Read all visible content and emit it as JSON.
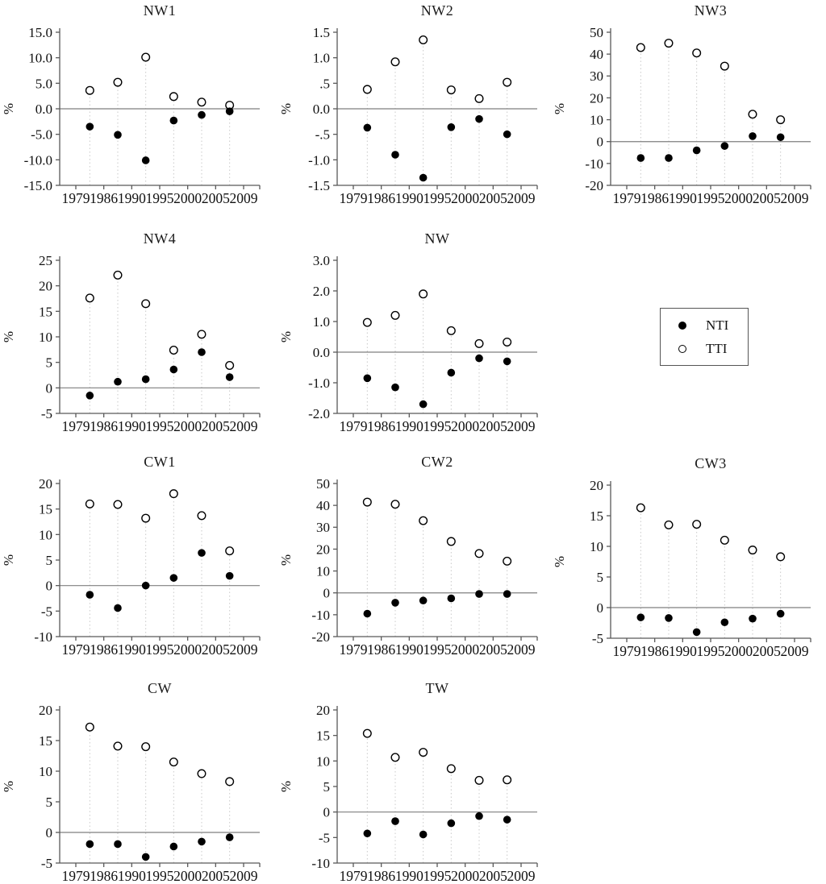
{
  "legend": {
    "items": [
      {
        "label": "NTI",
        "marker": "filled"
      },
      {
        "label": "TTI",
        "marker": "open"
      }
    ]
  },
  "layout": {
    "grid": "3 columns x 4 rows of small-multiple scatter plots",
    "x_points": "6 data points placed at midpoints between the 7 year ticks",
    "colors": {
      "marker": "#000000",
      "zero_line": "#7f7f7f",
      "axis": "#595959",
      "stem": "#c9c9c9"
    }
  },
  "chart_data": [
    {
      "type": "scatter",
      "title": "NW1",
      "ylabel": "%",
      "ylim": [
        -15,
        15
      ],
      "yticks": [
        {
          "v": 15,
          "label": "15.0"
        },
        {
          "v": 10,
          "label": "10.0"
        },
        {
          "v": 5,
          "label": "5.0"
        },
        {
          "v": 0,
          "label": "0.0"
        },
        {
          "v": -5,
          "label": "-5.0"
        },
        {
          "v": -10,
          "label": "-10.0"
        },
        {
          "v": -15,
          "label": "-15.0"
        }
      ],
      "xtick_labels": [
        "1979",
        "1986",
        "1990",
        "1995",
        "2000",
        "2005",
        "2009"
      ],
      "series": [
        {
          "name": "NTI",
          "marker": "filled",
          "values": [
            -3.5,
            -5.1,
            -10.1,
            -2.3,
            -1.2,
            -0.5
          ]
        },
        {
          "name": "TTI",
          "marker": "open",
          "values": [
            3.6,
            5.2,
            10.1,
            2.4,
            1.3,
            0.7
          ]
        }
      ]
    },
    {
      "type": "scatter",
      "title": "NW2",
      "ylabel": "%",
      "ylim": [
        -1.5,
        1.5
      ],
      "yticks": [
        {
          "v": 1.5,
          "label": "1.5"
        },
        {
          "v": 1.0,
          "label": "1.0"
        },
        {
          "v": 0.5,
          "label": ".5"
        },
        {
          "v": 0,
          "label": "0.0"
        },
        {
          "v": -0.5,
          "label": "-.5"
        },
        {
          "v": -1.0,
          "label": "-1.0"
        },
        {
          "v": -1.5,
          "label": "-1.5"
        }
      ],
      "xtick_labels": [
        "1979",
        "1986",
        "1990",
        "1995",
        "2000",
        "2005",
        "2009"
      ],
      "series": [
        {
          "name": "NTI",
          "marker": "filled",
          "values": [
            -0.37,
            -0.9,
            -1.35,
            -0.36,
            -0.2,
            -0.5
          ]
        },
        {
          "name": "TTI",
          "marker": "open",
          "values": [
            0.38,
            0.92,
            1.35,
            0.37,
            0.2,
            0.52
          ]
        }
      ]
    },
    {
      "type": "scatter",
      "title": "NW3",
      "ylabel": "%",
      "ylim": [
        -20,
        50
      ],
      "yticks": [
        {
          "v": 50,
          "label": "50"
        },
        {
          "v": 40,
          "label": "40"
        },
        {
          "v": 30,
          "label": "30"
        },
        {
          "v": 20,
          "label": "20"
        },
        {
          "v": 10,
          "label": "10"
        },
        {
          "v": 0,
          "label": "0"
        },
        {
          "v": -10,
          "label": "-10"
        },
        {
          "v": -20,
          "label": "-20"
        }
      ],
      "xtick_labels": [
        "1979",
        "1986",
        "1990",
        "1995",
        "2000",
        "2005",
        "2009"
      ],
      "series": [
        {
          "name": "NTI",
          "marker": "filled",
          "values": [
            -7.5,
            -7.5,
            -4,
            -2,
            2.5,
            2
          ]
        },
        {
          "name": "TTI",
          "marker": "open",
          "values": [
            43,
            45,
            40.5,
            34.5,
            12.5,
            10
          ]
        }
      ]
    },
    {
      "type": "scatter",
      "title": "NW4",
      "ylabel": "%",
      "ylim": [
        -5,
        25
      ],
      "yticks": [
        {
          "v": 25,
          "label": "25"
        },
        {
          "v": 20,
          "label": "20"
        },
        {
          "v": 15,
          "label": "15"
        },
        {
          "v": 10,
          "label": "10"
        },
        {
          "v": 5,
          "label": "5"
        },
        {
          "v": 0,
          "label": "0"
        },
        {
          "v": -5,
          "label": "-5"
        }
      ],
      "xtick_labels": [
        "1979",
        "1986",
        "1990",
        "1995",
        "2000",
        "2005",
        "2009"
      ],
      "series": [
        {
          "name": "NTI",
          "marker": "filled",
          "values": [
            -1.5,
            1.2,
            1.7,
            3.6,
            7.0,
            2.1
          ]
        },
        {
          "name": "TTI",
          "marker": "open",
          "values": [
            17.6,
            22.1,
            16.5,
            7.4,
            10.5,
            4.4
          ]
        }
      ]
    },
    {
      "type": "scatter",
      "title": "NW",
      "ylabel": "%",
      "ylim": [
        -2,
        3
      ],
      "yticks": [
        {
          "v": 3,
          "label": "3.0"
        },
        {
          "v": 2,
          "label": "2.0"
        },
        {
          "v": 1,
          "label": "1.0"
        },
        {
          "v": 0,
          "label": "0.0"
        },
        {
          "v": -1,
          "label": "-1.0"
        },
        {
          "v": -2,
          "label": "-2.0"
        }
      ],
      "xtick_labels": [
        "1979",
        "1986",
        "1990",
        "1995",
        "2000",
        "2005",
        "2009"
      ],
      "series": [
        {
          "name": "NTI",
          "marker": "filled",
          "values": [
            -0.85,
            -1.15,
            -1.7,
            -0.67,
            -0.2,
            -0.3
          ]
        },
        {
          "name": "TTI",
          "marker": "open",
          "values": [
            0.97,
            1.2,
            1.9,
            0.7,
            0.28,
            0.33
          ]
        }
      ]
    },
    {
      "type": "scatter",
      "title": "CW1",
      "ylabel": "%",
      "ylim": [
        -10,
        20
      ],
      "yticks": [
        {
          "v": 20,
          "label": "20"
        },
        {
          "v": 15,
          "label": "15"
        },
        {
          "v": 10,
          "label": "10"
        },
        {
          "v": 5,
          "label": "5"
        },
        {
          "v": 0,
          "label": "0"
        },
        {
          "v": -5,
          "label": "-5"
        },
        {
          "v": -10,
          "label": "-10"
        }
      ],
      "xtick_labels": [
        "1979",
        "1986",
        "1990",
        "1995",
        "2000",
        "2005",
        "2009"
      ],
      "series": [
        {
          "name": "NTI",
          "marker": "filled",
          "values": [
            -1.8,
            -4.4,
            0.0,
            1.5,
            6.4,
            1.9
          ]
        },
        {
          "name": "TTI",
          "marker": "open",
          "values": [
            16.0,
            15.9,
            13.2,
            18.0,
            13.7,
            6.8
          ]
        }
      ]
    },
    {
      "type": "scatter",
      "title": "CW2",
      "ylabel": "%",
      "ylim": [
        -20,
        50
      ],
      "yticks": [
        {
          "v": 50,
          "label": "50"
        },
        {
          "v": 40,
          "label": "40"
        },
        {
          "v": 30,
          "label": "30"
        },
        {
          "v": 20,
          "label": "20"
        },
        {
          "v": 10,
          "label": "10"
        },
        {
          "v": 0,
          "label": "0"
        },
        {
          "v": -10,
          "label": "-10"
        },
        {
          "v": -20,
          "label": "-20"
        }
      ],
      "xtick_labels": [
        "1979",
        "1986",
        "1990",
        "1995",
        "2000",
        "2005",
        "2009"
      ],
      "series": [
        {
          "name": "NTI",
          "marker": "filled",
          "values": [
            -9.5,
            -4.5,
            -3.5,
            -2.5,
            -0.5,
            -0.5
          ]
        },
        {
          "name": "TTI",
          "marker": "open",
          "values": [
            41.5,
            40.5,
            33.0,
            23.5,
            18.0,
            14.5
          ]
        }
      ]
    },
    {
      "type": "scatter",
      "title": "CW3",
      "ylabel": "%",
      "ylim": [
        -5,
        20
      ],
      "yticks": [
        {
          "v": 20,
          "label": "20"
        },
        {
          "v": 15,
          "label": "15"
        },
        {
          "v": 10,
          "label": "10"
        },
        {
          "v": 5,
          "label": "5"
        },
        {
          "v": 0,
          "label": "0"
        },
        {
          "v": -5,
          "label": "-5"
        }
      ],
      "xtick_labels": [
        "1979",
        "1986",
        "1990",
        "1995",
        "2000",
        "2005",
        "2009"
      ],
      "series": [
        {
          "name": "NTI",
          "marker": "filled",
          "values": [
            -1.6,
            -1.7,
            -4.0,
            -2.4,
            -1.8,
            -1.0
          ]
        },
        {
          "name": "TTI",
          "marker": "open",
          "values": [
            16.3,
            13.5,
            13.6,
            11.0,
            9.4,
            8.3
          ]
        }
      ]
    },
    {
      "type": "scatter",
      "title": "CW",
      "ylabel": "%",
      "ylim": [
        -5,
        20
      ],
      "yticks": [
        {
          "v": 20,
          "label": "20"
        },
        {
          "v": 15,
          "label": "15"
        },
        {
          "v": 10,
          "label": "10"
        },
        {
          "v": 5,
          "label": "5"
        },
        {
          "v": 0,
          "label": "0"
        },
        {
          "v": -5,
          "label": "-5"
        }
      ],
      "xtick_labels": [
        "1979",
        "1986",
        "1990",
        "1995",
        "2000",
        "2005",
        "2009"
      ],
      "series": [
        {
          "name": "NTI",
          "marker": "filled",
          "values": [
            -1.9,
            -1.9,
            -4.0,
            -2.3,
            -1.5,
            -0.8
          ]
        },
        {
          "name": "TTI",
          "marker": "open",
          "values": [
            17.2,
            14.1,
            14.0,
            11.5,
            9.6,
            8.3
          ]
        }
      ]
    },
    {
      "type": "scatter",
      "title": "TW",
      "ylabel": "%",
      "ylim": [
        -10,
        20
      ],
      "yticks": [
        {
          "v": 20,
          "label": "20"
        },
        {
          "v": 15,
          "label": "15"
        },
        {
          "v": 10,
          "label": "10"
        },
        {
          "v": 5,
          "label": "5"
        },
        {
          "v": 0,
          "label": "0"
        },
        {
          "v": -5,
          "label": "-5"
        },
        {
          "v": -10,
          "label": "-10"
        }
      ],
      "xtick_labels": [
        "1979",
        "1986",
        "1990",
        "1995",
        "2000",
        "2005",
        "2009"
      ],
      "series": [
        {
          "name": "NTI",
          "marker": "filled",
          "values": [
            -4.2,
            -1.8,
            -4.4,
            -2.2,
            -0.8,
            -1.5
          ]
        },
        {
          "name": "TTI",
          "marker": "open",
          "values": [
            15.4,
            10.7,
            11.7,
            8.5,
            6.2,
            6.3
          ]
        }
      ]
    }
  ]
}
